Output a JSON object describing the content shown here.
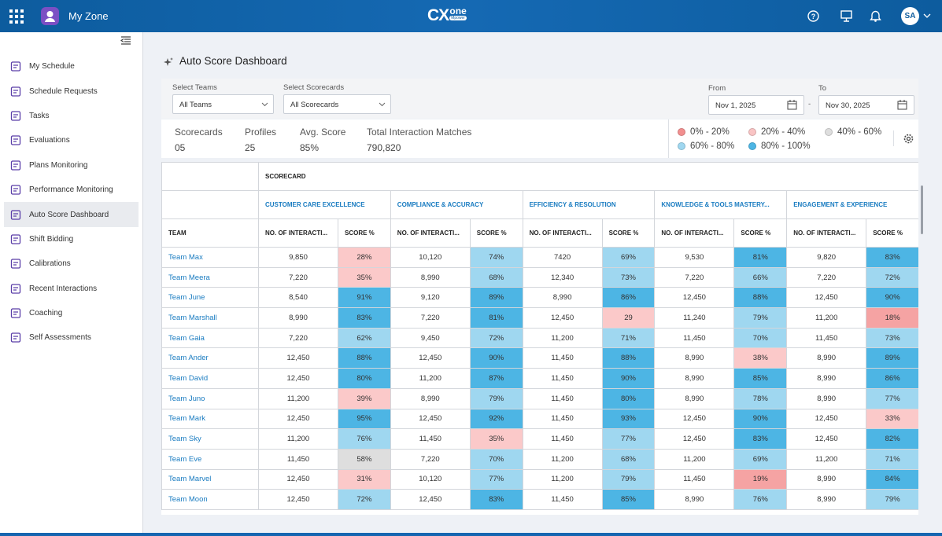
{
  "header": {
    "app_title": "My Zone",
    "logo": {
      "main": "CX",
      "sup": "one",
      "badge": "Mpower"
    },
    "user_initials": "SA"
  },
  "sidebar": {
    "items": [
      "My Schedule",
      "Schedule Requests",
      "Tasks",
      "Evaluations",
      "Plans Monitoring",
      "Performance Monitoring",
      "Auto Score Dashboard",
      "Shift Bidding",
      "Calibrations",
      "Recent Interactions",
      "Coaching",
      "Self Assessments"
    ],
    "active": 6
  },
  "page": {
    "title": "Auto Score Dashboard"
  },
  "filters": {
    "teams": {
      "label": "Select Teams",
      "value": "All Teams"
    },
    "scorecards": {
      "label": "Select Scorecards",
      "value": "All Scorecards"
    },
    "from": {
      "label": "From",
      "value": "Nov 1, 2025"
    },
    "to": {
      "label": "To",
      "value": "Nov 30, 2025"
    },
    "separator": "-"
  },
  "stats": [
    {
      "label": "Scorecards",
      "value": "05"
    },
    {
      "label": "Profiles",
      "value": "25"
    },
    {
      "label": "Avg. Score",
      "value": "85%"
    },
    {
      "label": "Total Interaction Matches",
      "value": "790,820"
    }
  ],
  "legend": [
    {
      "label": "0% - 20%",
      "color": "#f28f8f"
    },
    {
      "label": "20% - 40%",
      "color": "#f9c4c4"
    },
    {
      "label": "40% - 60%",
      "color": "#dedede"
    },
    {
      "label": "60% - 80%",
      "color": "#9fd7f0"
    },
    {
      "label": "80% - 100%",
      "color": "#4db5e4"
    }
  ],
  "table": {
    "group_header": "SCORECARD",
    "team_header": "TEAM",
    "count_header": "NO. OF INTERACTI...",
    "score_header": "SCORE %",
    "scorecards": [
      "CUSTOMER CARE EXCELLENCE",
      "COMPLIANCE & ACCURACY",
      "EFFICIENCY & RESOLUTION",
      "KNOWLEDGE & TOOLS MASTERY...",
      "ENGAGEMENT & EXPERIENCE"
    ],
    "rows": [
      {
        "team": "Team Max",
        "cells": [
          {
            "count": "9,850",
            "score": "28%",
            "color": "#fbc9c9"
          },
          {
            "count": "10,120",
            "score": "74%",
            "color": "#9fd7f0"
          },
          {
            "count": "7420",
            "score": "69%",
            "color": "#9fd7f0"
          },
          {
            "count": "9,530",
            "score": "81%",
            "color": "#4db5e4"
          },
          {
            "count": "9,820",
            "score": "83%",
            "color": "#4db5e4"
          }
        ]
      },
      {
        "team": "Team Meera",
        "cells": [
          {
            "count": "7,220",
            "score": "35%",
            "color": "#fbc9c9"
          },
          {
            "count": "8,990",
            "score": "68%",
            "color": "#9fd7f0"
          },
          {
            "count": "12,340",
            "score": "73%",
            "color": "#9fd7f0"
          },
          {
            "count": "7,220",
            "score": "66%",
            "color": "#9fd7f0"
          },
          {
            "count": "7,220",
            "score": "72%",
            "color": "#9fd7f0"
          }
        ]
      },
      {
        "team": "Team June",
        "cells": [
          {
            "count": "8,540",
            "score": "91%",
            "color": "#4db5e4"
          },
          {
            "count": "9,120",
            "score": "89%",
            "color": "#4db5e4"
          },
          {
            "count": "8,990",
            "score": "86%",
            "color": "#4db5e4"
          },
          {
            "count": "12,450",
            "score": "88%",
            "color": "#4db5e4"
          },
          {
            "count": "12,450",
            "score": "90%",
            "color": "#4db5e4"
          }
        ]
      },
      {
        "team": "Team Marshall",
        "cells": [
          {
            "count": "8,990",
            "score": "83%",
            "color": "#4db5e4"
          },
          {
            "count": "7,220",
            "score": "81%",
            "color": "#4db5e4"
          },
          {
            "count": "12,450",
            "score": "29",
            "color": "#fbc9c9"
          },
          {
            "count": "11,240",
            "score": "79%",
            "color": "#9fd7f0"
          },
          {
            "count": "11,200",
            "score": "18%",
            "color": "#f5a3a3"
          }
        ]
      },
      {
        "team": "Team Gaia",
        "cells": [
          {
            "count": "7,220",
            "score": "62%",
            "color": "#9fd7f0"
          },
          {
            "count": "9,450",
            "score": "72%",
            "color": "#9fd7f0"
          },
          {
            "count": "11,200",
            "score": "71%",
            "color": "#9fd7f0"
          },
          {
            "count": "11,450",
            "score": "70%",
            "color": "#9fd7f0"
          },
          {
            "count": "11,450",
            "score": "73%",
            "color": "#9fd7f0"
          }
        ]
      },
      {
        "team": "Team Ander",
        "cells": [
          {
            "count": "12,450",
            "score": "88%",
            "color": "#4db5e4"
          },
          {
            "count": "12,450",
            "score": "90%",
            "color": "#4db5e4"
          },
          {
            "count": "11,450",
            "score": "88%",
            "color": "#4db5e4"
          },
          {
            "count": "8,990",
            "score": "38%",
            "color": "#fbc9c9"
          },
          {
            "count": "8,990",
            "score": "89%",
            "color": "#4db5e4"
          }
        ]
      },
      {
        "team": "Team David",
        "cells": [
          {
            "count": "12,450",
            "score": "80%",
            "color": "#4db5e4"
          },
          {
            "count": "11,200",
            "score": "87%",
            "color": "#4db5e4"
          },
          {
            "count": "11,450",
            "score": "90%",
            "color": "#4db5e4"
          },
          {
            "count": "8,990",
            "score": "85%",
            "color": "#4db5e4"
          },
          {
            "count": "8,990",
            "score": "86%",
            "color": "#4db5e4"
          }
        ]
      },
      {
        "team": "Team Juno",
        "cells": [
          {
            "count": "11,200",
            "score": "39%",
            "color": "#fbc9c9"
          },
          {
            "count": "8,990",
            "score": "79%",
            "color": "#9fd7f0"
          },
          {
            "count": "11,450",
            "score": "80%",
            "color": "#4db5e4"
          },
          {
            "count": "8,990",
            "score": "78%",
            "color": "#9fd7f0"
          },
          {
            "count": "8,990",
            "score": "77%",
            "color": "#9fd7f0"
          }
        ]
      },
      {
        "team": "Team Mark",
        "cells": [
          {
            "count": "12,450",
            "score": "95%",
            "color": "#4db5e4"
          },
          {
            "count": "12,450",
            "score": "92%",
            "color": "#4db5e4"
          },
          {
            "count": "11,450",
            "score": "93%",
            "color": "#4db5e4"
          },
          {
            "count": "12,450",
            "score": "90%",
            "color": "#4db5e4"
          },
          {
            "count": "12,450",
            "score": "33%",
            "color": "#fbc9c9"
          }
        ]
      },
      {
        "team": "Team Sky",
        "cells": [
          {
            "count": "11,200",
            "score": "76%",
            "color": "#9fd7f0"
          },
          {
            "count": "11,450",
            "score": "35%",
            "color": "#fbc9c9"
          },
          {
            "count": "11,450",
            "score": "77%",
            "color": "#9fd7f0"
          },
          {
            "count": "12,450",
            "score": "83%",
            "color": "#4db5e4"
          },
          {
            "count": "12,450",
            "score": "82%",
            "color": "#4db5e4"
          }
        ]
      },
      {
        "team": "Team Eve",
        "cells": [
          {
            "count": "11,450",
            "score": "58%",
            "color": "#dedede"
          },
          {
            "count": "7,220",
            "score": "70%",
            "color": "#9fd7f0"
          },
          {
            "count": "11,200",
            "score": "68%",
            "color": "#9fd7f0"
          },
          {
            "count": "11,200",
            "score": "69%",
            "color": "#9fd7f0"
          },
          {
            "count": "11,200",
            "score": "71%",
            "color": "#9fd7f0"
          }
        ]
      },
      {
        "team": "Team Marvel",
        "cells": [
          {
            "count": "12,450",
            "score": "31%",
            "color": "#fbc9c9"
          },
          {
            "count": "10,120",
            "score": "77%",
            "color": "#9fd7f0"
          },
          {
            "count": "11,200",
            "score": "79%",
            "color": "#9fd7f0"
          },
          {
            "count": "11,450",
            "score": "19%",
            "color": "#f5a3a3"
          },
          {
            "count": "8,990",
            "score": "84%",
            "color": "#4db5e4"
          }
        ]
      },
      {
        "team": "Team Moon",
        "cells": [
          {
            "count": "12,450",
            "score": "72%",
            "color": "#9fd7f0"
          },
          {
            "count": "12,450",
            "score": "83%",
            "color": "#4db5e4"
          },
          {
            "count": "11,450",
            "score": "85%",
            "color": "#4db5e4"
          },
          {
            "count": "8,990",
            "score": "76%",
            "color": "#9fd7f0"
          },
          {
            "count": "8,990",
            "score": "79%",
            "color": "#9fd7f0"
          }
        ]
      }
    ]
  }
}
